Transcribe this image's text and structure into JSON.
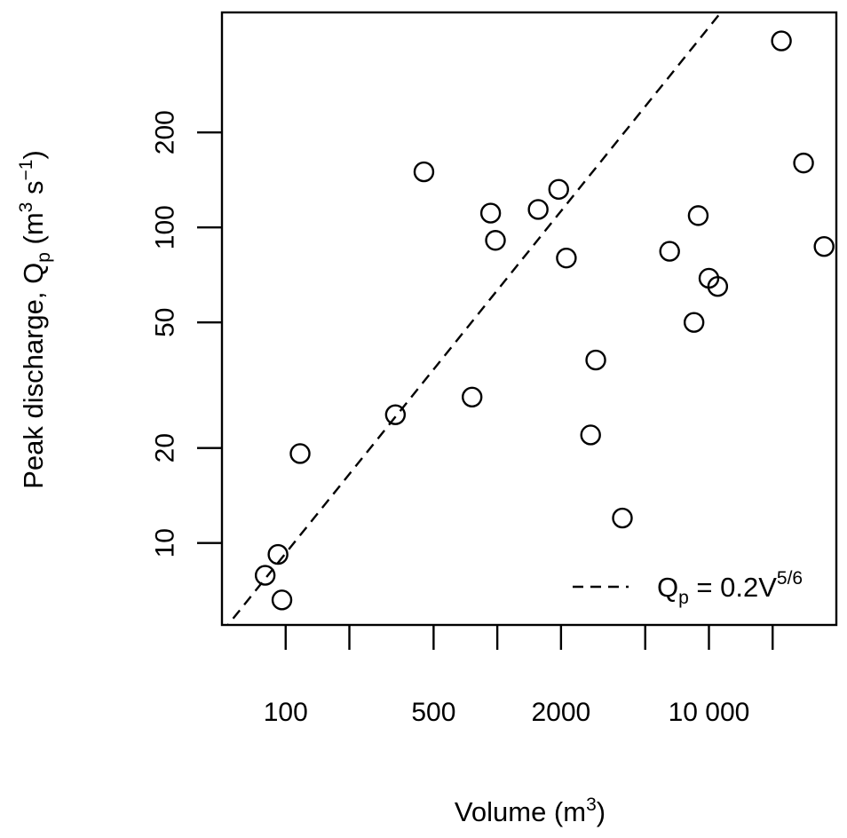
{
  "chart_data": {
    "type": "scatter",
    "title": "",
    "xscale": "log",
    "yscale": "log",
    "xlim": [
      50,
      40000
    ],
    "ylim": [
      5.5,
      480
    ],
    "x_ticks": [
      100,
      200,
      500,
      1000,
      2000,
      5000,
      10000,
      20000
    ],
    "x_tick_labels": [
      "100",
      "",
      "500",
      "",
      "2000",
      "",
      "10 000",
      ""
    ],
    "y_ticks": [
      10,
      20,
      50,
      100,
      200
    ],
    "y_tick_labels": [
      "10",
      "20",
      "50",
      "100",
      "200"
    ],
    "xlabel": {
      "main": "Volume (m",
      "sup": "3",
      "close": ")"
    },
    "ylabel": {
      "a": "Peak discharge, Q",
      "sub": "p",
      "b": " (m",
      "sup1": "3",
      "c": " s",
      "sup2": "−1",
      "d": ")"
    },
    "grid": false,
    "legend": {
      "placement": "bottom-right",
      "text": "Q",
      "sub": "p",
      "mid": " = 0.2V",
      "sup": "5/6"
    },
    "series": [
      {
        "kind": "points",
        "marker": "open-circle",
        "color": "#000000",
        "x": [
          80,
          92,
          96,
          117,
          330,
          450,
          760,
          930,
          980,
          1560,
          1950,
          2120,
          2760,
          2920,
          3900,
          6520,
          8500,
          8900,
          10000,
          11000,
          22000,
          28000,
          35000
        ],
        "y": [
          7.9,
          9.2,
          6.6,
          19.2,
          25.5,
          150,
          29,
          111,
          91,
          114,
          132,
          80,
          22,
          38,
          12,
          84,
          50,
          109,
          69,
          65,
          390,
          160,
          87
        ]
      },
      {
        "kind": "line",
        "name": "Qp = 0.2V^(5/6)",
        "style": "dashed",
        "color": "#000000",
        "coefficient": 0.2,
        "exponent": 0.8333,
        "x": [
          50,
          40000
        ]
      }
    ]
  }
}
